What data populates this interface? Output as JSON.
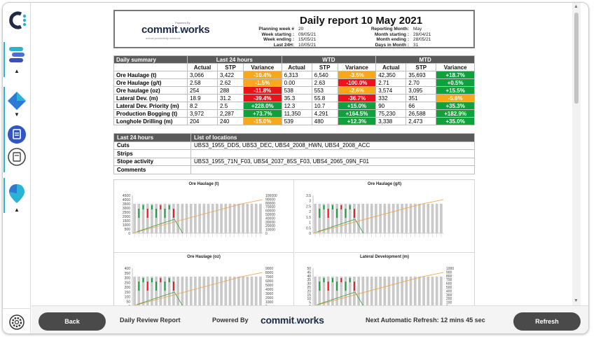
{
  "report": {
    "title": "Daily report 10 May 2021",
    "powered_by_small": "Powered By",
    "brand_pre": "commit",
    "brand_dot": ".",
    "brand_post": "works",
    "tagline": "unlock productivity solutions",
    "meta_left": [
      {
        "k": "Planning week #",
        "v": "20"
      },
      {
        "k": "Week starting :",
        "v": "09/05/21"
      },
      {
        "k": "Week ending :",
        "v": "15/05/21"
      },
      {
        "k": "Last 24H:",
        "v": "10/05/21"
      }
    ],
    "meta_right": [
      {
        "k": "Reporting Month:",
        "v": "May"
      },
      {
        "k": "Month starting :",
        "v": "28/04/21"
      },
      {
        "k": "Month ending :",
        "v": "28/05/21"
      },
      {
        "k": "Days in Month :",
        "v": "31"
      }
    ]
  },
  "summary": {
    "header": [
      "Daily summary",
      "Last 24 hours",
      "WTD",
      "MTD"
    ],
    "subheader": [
      "Actual",
      "STP",
      "Variance",
      "Actual",
      "STP",
      "Variance",
      "Actual",
      "STP",
      "Variance"
    ],
    "rows": [
      {
        "label": "Ore Haulage (t)",
        "c": [
          "3,066",
          "3,422",
          "-10.4%",
          "6,313",
          "6,540",
          "-3.5%",
          "42,350",
          "35,693",
          "+18.7%"
        ],
        "colors": [
          "orange",
          "orange",
          "green"
        ]
      },
      {
        "label": "Ore Haulage (g/t)",
        "c": [
          "2.58",
          "2.62",
          "-1.5%",
          "0.00",
          "2.63",
          "-100.0%",
          "2.71",
          "2.70",
          "+0.5%"
        ],
        "colors": [
          "orange",
          "red",
          "green"
        ]
      },
      {
        "label": "Ore haulage (oz)",
        "c": [
          "254",
          "288",
          "-11.8%",
          "538",
          "553",
          "-2.6%",
          "3,574",
          "3,095",
          "+15.5%"
        ],
        "colors": [
          "red",
          "orange",
          "green"
        ]
      },
      {
        "label": "Lateral Dev. (m)",
        "c": [
          "18.9",
          "31.2",
          "-39.4%",
          "35.3",
          "55.8",
          "-36.7%",
          "332",
          "351",
          "-5.6%"
        ],
        "colors": [
          "red",
          "red",
          "orange"
        ]
      },
      {
        "label": "Lateral Dev. Priority (m)",
        "c": [
          "8.2",
          "2.5",
          "+228.0%",
          "12.3",
          "10.7",
          "+15.0%",
          "90",
          "66",
          "+35.3%"
        ],
        "colors": [
          "green",
          "green",
          "green"
        ]
      },
      {
        "label": "Production Bogging (t)",
        "c": [
          "3,972",
          "2,287",
          "+73.7%",
          "11,350",
          "4,291",
          "+164.5%",
          "75,230",
          "26,588",
          "+182.9%"
        ],
        "colors": [
          "green",
          "green",
          "green"
        ]
      },
      {
        "label": "Longhole Drilling (m)",
        "c": [
          "204",
          "240",
          "-15.0%",
          "539",
          "480",
          "+12.3%",
          "3,338",
          "2,473",
          "+35.0%"
        ],
        "colors": [
          "orange",
          "green",
          "green"
        ]
      }
    ]
  },
  "locations": {
    "header": [
      "Last 24 hours",
      "List of locations"
    ],
    "rows": [
      {
        "label": "Cuts",
        "value": "UBS3_1955_DDS, UBS3_DEC, UBS4_2008_HWN, UBS4_2008_ACC"
      },
      {
        "label": "Strips",
        "value": ""
      },
      {
        "label": "Stope activity",
        "value": "UBS3_1955_71N_F03, UBS4_2037_85S_F03, UBS4_2065_09N_F01"
      },
      {
        "label": "Comments",
        "value": ""
      }
    ]
  },
  "charts": [
    {
      "title": "Ore Haulage (t)",
      "y_ticks": [
        "4500",
        "4000",
        "3500",
        "3000",
        "2500",
        "2000",
        "1500",
        "1000",
        "500",
        "0"
      ],
      "y2_ticks": [
        "100000",
        "90000",
        "80000",
        "70000",
        "60000",
        "50000",
        "40000",
        "30000",
        "20000",
        "10000",
        "0"
      ]
    },
    {
      "title": "Ore Haulage (g/t)",
      "y_ticks": [
        "3.5",
        "3",
        "2.5",
        "2",
        "1.5",
        "1",
        "0.5",
        "0"
      ],
      "y2_ticks": []
    },
    {
      "title": "Ore Haulage (oz)",
      "y_ticks": [
        "400",
        "350",
        "300",
        "250",
        "200",
        "150",
        "100",
        "50",
        "0"
      ],
      "y2_ticks": [
        "9000",
        "8000",
        "7000",
        "6000",
        "5000",
        "4000",
        "3000",
        "2000",
        "1000",
        "0"
      ]
    },
    {
      "title": "Lateral Development (m)",
      "y_ticks": [
        "50",
        "45",
        "40",
        "35",
        "30",
        "25",
        "20",
        "15",
        "10",
        "5",
        "0"
      ],
      "y2_ticks": [
        "1000",
        "900",
        "800",
        "700",
        "600",
        "500",
        "400",
        "300",
        "200",
        "100",
        "0"
      ]
    }
  ],
  "footer": {
    "back": "Back",
    "review": "Daily Review Report",
    "powered": "Powered By",
    "brand_pre": "commit",
    "brand_dot": ".",
    "brand_post": "works",
    "refresh_text": "Next Automatic Refresh: 12 mins 45 sec",
    "refresh": "Refresh"
  },
  "colors": {
    "accent": "#2bb3d6",
    "red": "#e8141d",
    "green": "#10a03c",
    "orange": "#f7a81b"
  }
}
